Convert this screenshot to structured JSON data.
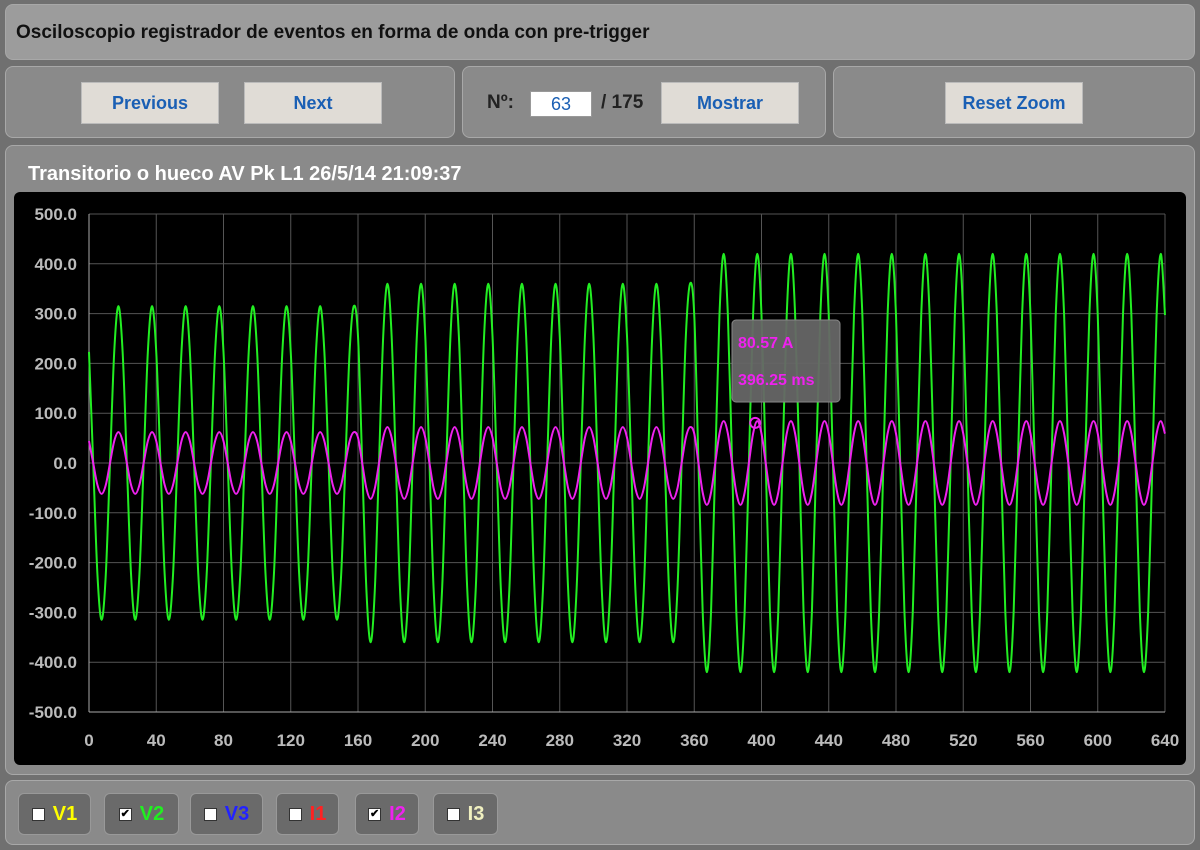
{
  "header": {
    "title": "Osciloscopio registrador de eventos en forma de onda con pre-trigger"
  },
  "controls": {
    "previous": "Previous",
    "next": "Next",
    "number_label": "Nº:",
    "number_value": "63",
    "total": "/ 175",
    "show": "Mostrar",
    "reset_zoom": "Reset Zoom"
  },
  "chart_data": {
    "type": "line",
    "title": "Transitorio o hueco AV Pk L1 26/5/14 21:09:37",
    "xlim": [
      0,
      640
    ],
    "ylim": [
      -500,
      500
    ],
    "xticks": [
      0,
      40,
      80,
      120,
      160,
      200,
      240,
      280,
      320,
      360,
      400,
      440,
      480,
      520,
      560,
      600,
      640
    ],
    "yticks": [
      {
        "value": -500,
        "label": "-500.0"
      },
      {
        "value": -400,
        "label": "-400.0"
      },
      {
        "value": -300,
        "label": "-300.0"
      },
      {
        "value": -200,
        "label": "-200.0"
      },
      {
        "value": -100,
        "label": "-100.0"
      },
      {
        "value": 0,
        "label": "0.0"
      },
      {
        "value": 100,
        "label": "100.0"
      },
      {
        "value": 200,
        "label": "200.0"
      },
      {
        "value": 300,
        "label": "300.0"
      },
      {
        "value": 400,
        "label": "400.0"
      },
      {
        "value": 500,
        "label": "500.0"
      }
    ],
    "grid": true,
    "x": [
      0,
      2.5,
      5,
      7.5,
      10,
      12.5,
      15,
      17.5,
      20,
      22.5,
      25,
      27.5,
      30,
      32.5,
      35,
      37.5,
      40,
      42.5,
      45,
      47.5,
      50,
      52.5,
      55,
      57.5,
      60,
      62.5,
      65,
      67.5,
      70,
      72.5,
      75,
      77.5,
      80,
      82.5,
      85,
      87.5,
      90,
      92.5,
      95,
      97.5,
      100,
      102.5,
      105,
      107.5,
      110,
      112.5,
      115,
      117.5,
      120,
      122.5,
      125,
      127.5,
      130,
      132.5,
      135,
      137.5,
      140,
      142.5,
      145,
      147.5,
      150,
      152.5,
      155,
      157.5,
      160,
      162.5,
      165,
      167.5,
      170,
      172.5,
      175,
      177.5,
      180,
      182.5,
      185,
      187.5,
      190,
      192.5,
      195,
      197.5,
      200,
      202.5,
      205,
      207.5,
      210,
      212.5,
      215,
      217.5,
      220,
      222.5,
      225,
      227.5,
      230,
      232.5,
      235,
      237.5,
      240,
      242.5,
      245,
      247.5,
      250,
      252.5,
      255,
      257.5,
      260,
      262.5,
      265,
      267.5,
      270,
      272.5,
      275,
      277.5,
      280,
      282.5,
      285,
      287.5,
      290,
      292.5,
      295,
      297.5,
      300,
      302.5,
      305,
      307.5,
      310,
      312.5,
      315,
      317.5,
      320,
      322.5,
      325,
      327.5,
      330,
      332.5,
      335,
      337.5,
      340,
      342.5,
      345,
      347.5,
      350,
      352.5,
      355,
      357.5,
      360,
      362.5,
      365,
      367.5,
      370,
      372.5,
      375,
      377.5,
      380,
      382.5,
      385,
      387.5,
      390,
      392.5,
      395,
      397.5,
      400,
      402.5,
      405,
      407.5,
      410,
      412.5,
      415,
      417.5,
      420,
      422.5,
      425,
      427.5,
      430,
      432.5,
      435,
      437.5,
      440,
      442.5,
      445,
      447.5,
      450,
      452.5,
      455,
      457.5,
      460,
      462.5,
      465,
      467.5,
      470,
      472.5,
      475,
      477.5,
      480,
      482.5,
      485,
      487.5,
      490,
      492.5,
      495,
      497.5,
      500,
      502.5,
      505,
      507.5,
      510,
      512.5,
      515,
      517.5,
      520,
      522.5,
      525,
      527.5,
      530,
      532.5,
      535,
      537.5,
      540,
      542.5,
      545,
      547.5,
      550,
      552.5,
      555,
      557.5,
      560,
      562.5,
      565,
      567.5,
      570,
      572.5,
      575,
      577.5,
      580,
      582.5,
      585,
      587.5,
      590,
      592.5,
      595,
      597.5,
      600,
      602.5,
      605,
      607.5,
      610,
      612.5,
      615,
      617.5,
      620,
      622.5,
      625,
      627.5,
      630,
      632.5,
      635,
      637.5,
      640
    ],
    "series": [
      {
        "name": "V1",
        "color": "#ffff00",
        "checked": false
      },
      {
        "name": "V2",
        "color": "#22ee22",
        "checked": true,
        "values": [
          223,
          0,
          -223,
          -315,
          -223,
          0,
          223,
          315,
          223,
          0,
          -223,
          -315,
          -223,
          0,
          223,
          315,
          223,
          0,
          -223,
          -315,
          -223,
          0,
          223,
          315,
          223,
          0,
          -223,
          -315,
          -223,
          0,
          223,
          315,
          223,
          0,
          -223,
          -315,
          -223,
          0,
          223,
          315,
          223,
          0,
          -223,
          -315,
          -223,
          0,
          223,
          315,
          223,
          0,
          -223,
          -315,
          -223,
          0,
          223,
          315,
          223,
          0,
          -223,
          -315,
          -223,
          0,
          223,
          315,
          255,
          0,
          -255,
          -360,
          -255,
          0,
          255,
          360,
          255,
          0,
          -255,
          -360,
          -255,
          0,
          255,
          360,
          255,
          0,
          -255,
          -360,
          -255,
          0,
          255,
          360,
          255,
          0,
          -255,
          -360,
          -255,
          0,
          255,
          360,
          255,
          0,
          -255,
          -360,
          -255,
          0,
          255,
          360,
          255,
          0,
          -255,
          -360,
          -255,
          0,
          255,
          360,
          255,
          0,
          -255,
          -360,
          -255,
          0,
          255,
          360,
          255,
          0,
          -255,
          -360,
          -255,
          0,
          255,
          360,
          255,
          0,
          -255,
          -360,
          -255,
          0,
          255,
          360,
          255,
          0,
          -255,
          -360,
          -255,
          0,
          255,
          360,
          297,
          0,
          -297,
          -420,
          -297,
          0,
          297,
          420,
          297,
          0,
          -297,
          -420,
          -297,
          0,
          297,
          420,
          297,
          0,
          -297,
          -420,
          -297,
          0,
          297,
          420,
          297,
          0,
          -297,
          -420,
          -297,
          0,
          297,
          420,
          297,
          0,
          -297,
          -420,
          -297,
          0,
          297,
          420,
          297,
          0,
          -297,
          -420,
          -297,
          0,
          297,
          420,
          297,
          0,
          -297,
          -420,
          -297,
          0,
          297,
          420,
          297,
          0,
          -297,
          -420,
          -297,
          0,
          297,
          420,
          297,
          0,
          -297,
          -420,
          -297,
          0,
          297,
          420,
          297,
          0,
          -297,
          -420,
          -297,
          0,
          297,
          420,
          297,
          0,
          -297,
          -420,
          -297,
          0,
          297,
          420,
          297,
          0,
          -297,
          -420,
          -297,
          0,
          297,
          420,
          297,
          0,
          -297,
          -420,
          -297,
          0,
          297,
          420,
          297,
          0,
          -297,
          -420,
          -297,
          0,
          297,
          420,
          297
        ]
      },
      {
        "name": "V3",
        "color": "#2222ff",
        "checked": false
      },
      {
        "name": "I1",
        "color": "#ff2222",
        "checked": false
      },
      {
        "name": "I2",
        "color": "#ee22ee",
        "checked": true,
        "values": [
          44,
          0,
          -44,
          -62,
          -44,
          0,
          44,
          62,
          44,
          0,
          -44,
          -62,
          -44,
          0,
          44,
          62,
          44,
          0,
          -44,
          -62,
          -44,
          0,
          44,
          62,
          44,
          0,
          -44,
          -62,
          -44,
          0,
          44,
          62,
          44,
          0,
          -44,
          -62,
          -44,
          0,
          44,
          62,
          44,
          0,
          -44,
          -62,
          -44,
          0,
          44,
          62,
          44,
          0,
          -44,
          -62,
          -44,
          0,
          44,
          62,
          44,
          0,
          -44,
          -62,
          -44,
          0,
          44,
          62,
          51,
          0,
          -51,
          -72,
          -51,
          0,
          51,
          72,
          51,
          0,
          -51,
          -72,
          -51,
          0,
          51,
          72,
          51,
          0,
          -51,
          -72,
          -51,
          0,
          51,
          72,
          51,
          0,
          -51,
          -72,
          -51,
          0,
          51,
          72,
          51,
          0,
          -51,
          -72,
          -51,
          0,
          51,
          72,
          51,
          0,
          -51,
          -72,
          -51,
          0,
          51,
          72,
          51,
          0,
          -51,
          -72,
          -51,
          0,
          51,
          72,
          51,
          0,
          -51,
          -72,
          -51,
          0,
          51,
          72,
          51,
          0,
          -51,
          -72,
          -51,
          0,
          51,
          72,
          51,
          0,
          -51,
          -72,
          -51,
          0,
          51,
          72,
          59,
          0,
          -59,
          -84,
          -59,
          0,
          59,
          84,
          59,
          0,
          -59,
          -84,
          -59,
          0,
          59,
          84,
          59,
          0,
          -59,
          -84,
          -59,
          0,
          59,
          84,
          59,
          0,
          -59,
          -84,
          -59,
          0,
          59,
          84,
          59,
          0,
          -59,
          -84,
          -59,
          0,
          59,
          84,
          59,
          0,
          -59,
          -84,
          -59,
          0,
          59,
          84,
          59,
          0,
          -59,
          -84,
          -59,
          0,
          59,
          84,
          59,
          0,
          -59,
          -84,
          -59,
          0,
          59,
          84,
          59,
          0,
          -59,
          -84,
          -59,
          0,
          59,
          84,
          59,
          0,
          -59,
          -84,
          -59,
          0,
          59,
          84,
          59,
          0,
          -59,
          -84,
          -59,
          0,
          59,
          84,
          59,
          0,
          -59,
          -84,
          -59,
          0,
          59,
          84,
          59,
          0,
          -59,
          -84,
          -59,
          0,
          59,
          84,
          59,
          0,
          -59,
          -84,
          -59,
          0,
          59,
          84,
          59
        ]
      },
      {
        "name": "I3",
        "color": "#f0f0c0",
        "checked": false
      }
    ],
    "tooltip": {
      "x": 396.25,
      "y": 80.57,
      "y_text": "80.57 A",
      "x_text": "396.25 ms"
    }
  }
}
